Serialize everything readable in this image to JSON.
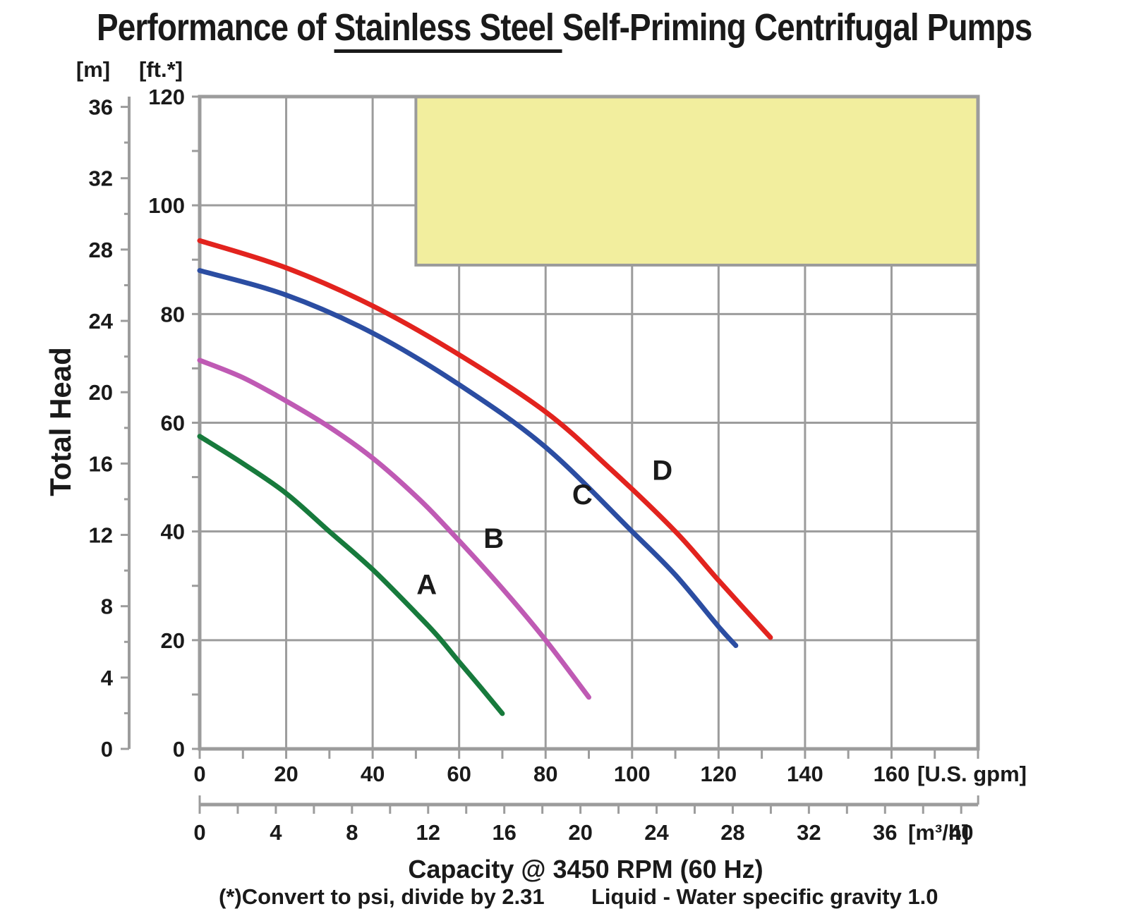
{
  "title": {
    "prefix": "Performance of ",
    "underlined": "Stainless Steel",
    "suffix": "Self-Priming Centrifugal Pumps"
  },
  "chart_data": {
    "type": "line",
    "title": "Performance of Stainless Steel Self-Priming Centrifugal Pumps",
    "xlabel": "Capacity @ 3450 RPM (60 Hz)",
    "ylabel": "Total Head",
    "footnote_left": "(*)Convert to psi, divide by 2.31",
    "footnote_right": "Liquid - Water specific gravity 1.0",
    "x_primary": {
      "unit_label": "[U.S. gpm]",
      "range_gpm": [
        0,
        180
      ],
      "gridline_step": 20,
      "tick_step": 10,
      "labels": [
        0,
        20,
        40,
        60,
        80,
        100,
        120,
        140,
        160
      ]
    },
    "x_secondary": {
      "unit_label": "[m³/h]",
      "range_m3h": [
        0,
        40
      ],
      "tick_step": 2,
      "label_step": 4,
      "labels": [
        0,
        4,
        8,
        12,
        16,
        20,
        24,
        28,
        32,
        36,
        40
      ],
      "gpm_per_m3h": 4.4029
    },
    "y_primary_ft": {
      "unit_label": "[ft.*]",
      "range_ft": [
        0,
        120
      ],
      "gridline_step": 20,
      "tick_step": 10,
      "labels": [
        120,
        100,
        80,
        60,
        40,
        20,
        0
      ]
    },
    "y_secondary_m": {
      "unit_label": "[m]",
      "range_m": [
        0,
        36.6
      ],
      "tick_step": 2,
      "label_step": 4,
      "labels": [
        36,
        32,
        28,
        24,
        20,
        16,
        12,
        8,
        4,
        0
      ],
      "ft_per_m": 3.2808
    },
    "series": [
      {
        "name": "A",
        "color": "#177a3c",
        "label_pos_gpm_ft": [
          52.5,
          28.5
        ],
        "points_gpm_ft": [
          [
            0,
            57.5
          ],
          [
            10,
            52.5
          ],
          [
            20,
            47
          ],
          [
            30,
            40
          ],
          [
            40,
            33
          ],
          [
            50,
            25
          ],
          [
            55,
            20.8
          ],
          [
            60,
            16
          ],
          [
            65,
            11.3
          ],
          [
            70,
            6.5
          ]
        ]
      },
      {
        "name": "B",
        "color": "#bf5ab4",
        "label_pos_gpm_ft": [
          68,
          37
        ],
        "points_gpm_ft": [
          [
            0,
            71.5
          ],
          [
            10,
            68.3
          ],
          [
            20,
            64
          ],
          [
            30,
            59.2
          ],
          [
            40,
            53.5
          ],
          [
            50,
            46.5
          ],
          [
            58,
            40
          ],
          [
            70,
            29.5
          ],
          [
            80,
            20
          ],
          [
            90,
            9.5
          ]
        ]
      },
      {
        "name": "C",
        "color": "#2b4da2",
        "label_pos_gpm_ft": [
          88.5,
          45
        ],
        "points_gpm_ft": [
          [
            0,
            88
          ],
          [
            20,
            83.5
          ],
          [
            40,
            76.5
          ],
          [
            60,
            67
          ],
          [
            80,
            55.5
          ],
          [
            100,
            40
          ],
          [
            110,
            32
          ],
          [
            120,
            22.5
          ],
          [
            124,
            19
          ]
        ]
      },
      {
        "name": "D",
        "color": "#e2231e",
        "label_pos_gpm_ft": [
          107,
          49.5
        ],
        "points_gpm_ft": [
          [
            0,
            93.5
          ],
          [
            20,
            88.5
          ],
          [
            40,
            81.5
          ],
          [
            60,
            72.5
          ],
          [
            80,
            62
          ],
          [
            95,
            51.5
          ],
          [
            110,
            40
          ],
          [
            120,
            31
          ],
          [
            132,
            20.5
          ]
        ]
      }
    ],
    "highlight_box": {
      "gpm_from": 50,
      "gpm_to": 180,
      "ft_from": 89,
      "ft_to": 120,
      "fill": "#f2ee9e",
      "border": "#9b9b9b"
    },
    "grid": {
      "on": true,
      "color": "#9c9c9c"
    },
    "text_color": "#1a1a1a",
    "legend_position": "none"
  }
}
